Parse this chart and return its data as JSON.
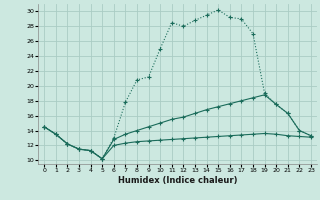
{
  "xlabel": "Humidex (Indice chaleur)",
  "bg_color": "#cce8e0",
  "grid_color": "#aaccc4",
  "line_color": "#1a6b5a",
  "x": [
    0,
    1,
    2,
    3,
    4,
    5,
    6,
    7,
    8,
    9,
    10,
    11,
    12,
    13,
    14,
    15,
    16,
    17,
    18,
    19,
    20,
    21,
    22,
    23
  ],
  "line1": [
    14.5,
    13.5,
    12.2,
    11.5,
    11.3,
    10.2,
    13.0,
    17.8,
    20.8,
    21.2,
    25.0,
    28.5,
    28.0,
    28.8,
    29.5,
    30.2,
    29.2,
    29.0,
    27.0,
    19.0,
    17.5,
    16.3,
    14.0,
    13.3
  ],
  "line2": [
    14.5,
    13.5,
    12.2,
    11.5,
    11.3,
    10.2,
    12.8,
    13.5,
    14.0,
    14.5,
    15.0,
    15.5,
    15.8,
    16.3,
    16.8,
    17.2,
    17.6,
    18.0,
    18.4,
    18.8,
    17.5,
    16.3,
    14.0,
    13.3
  ],
  "line3": [
    14.5,
    13.5,
    12.2,
    11.5,
    11.3,
    10.2,
    12.0,
    12.3,
    12.5,
    12.6,
    12.7,
    12.8,
    12.9,
    13.0,
    13.1,
    13.2,
    13.3,
    13.4,
    13.5,
    13.6,
    13.5,
    13.3,
    13.2,
    13.1
  ],
  "ylim": [
    9.5,
    31
  ],
  "xlim": [
    -0.5,
    23.5
  ],
  "yticks": [
    10,
    12,
    14,
    16,
    18,
    20,
    22,
    24,
    26,
    28,
    30
  ],
  "xticks": [
    0,
    1,
    2,
    3,
    4,
    5,
    6,
    7,
    8,
    9,
    10,
    11,
    12,
    13,
    14,
    15,
    16,
    17,
    18,
    19,
    20,
    21,
    22,
    23
  ]
}
